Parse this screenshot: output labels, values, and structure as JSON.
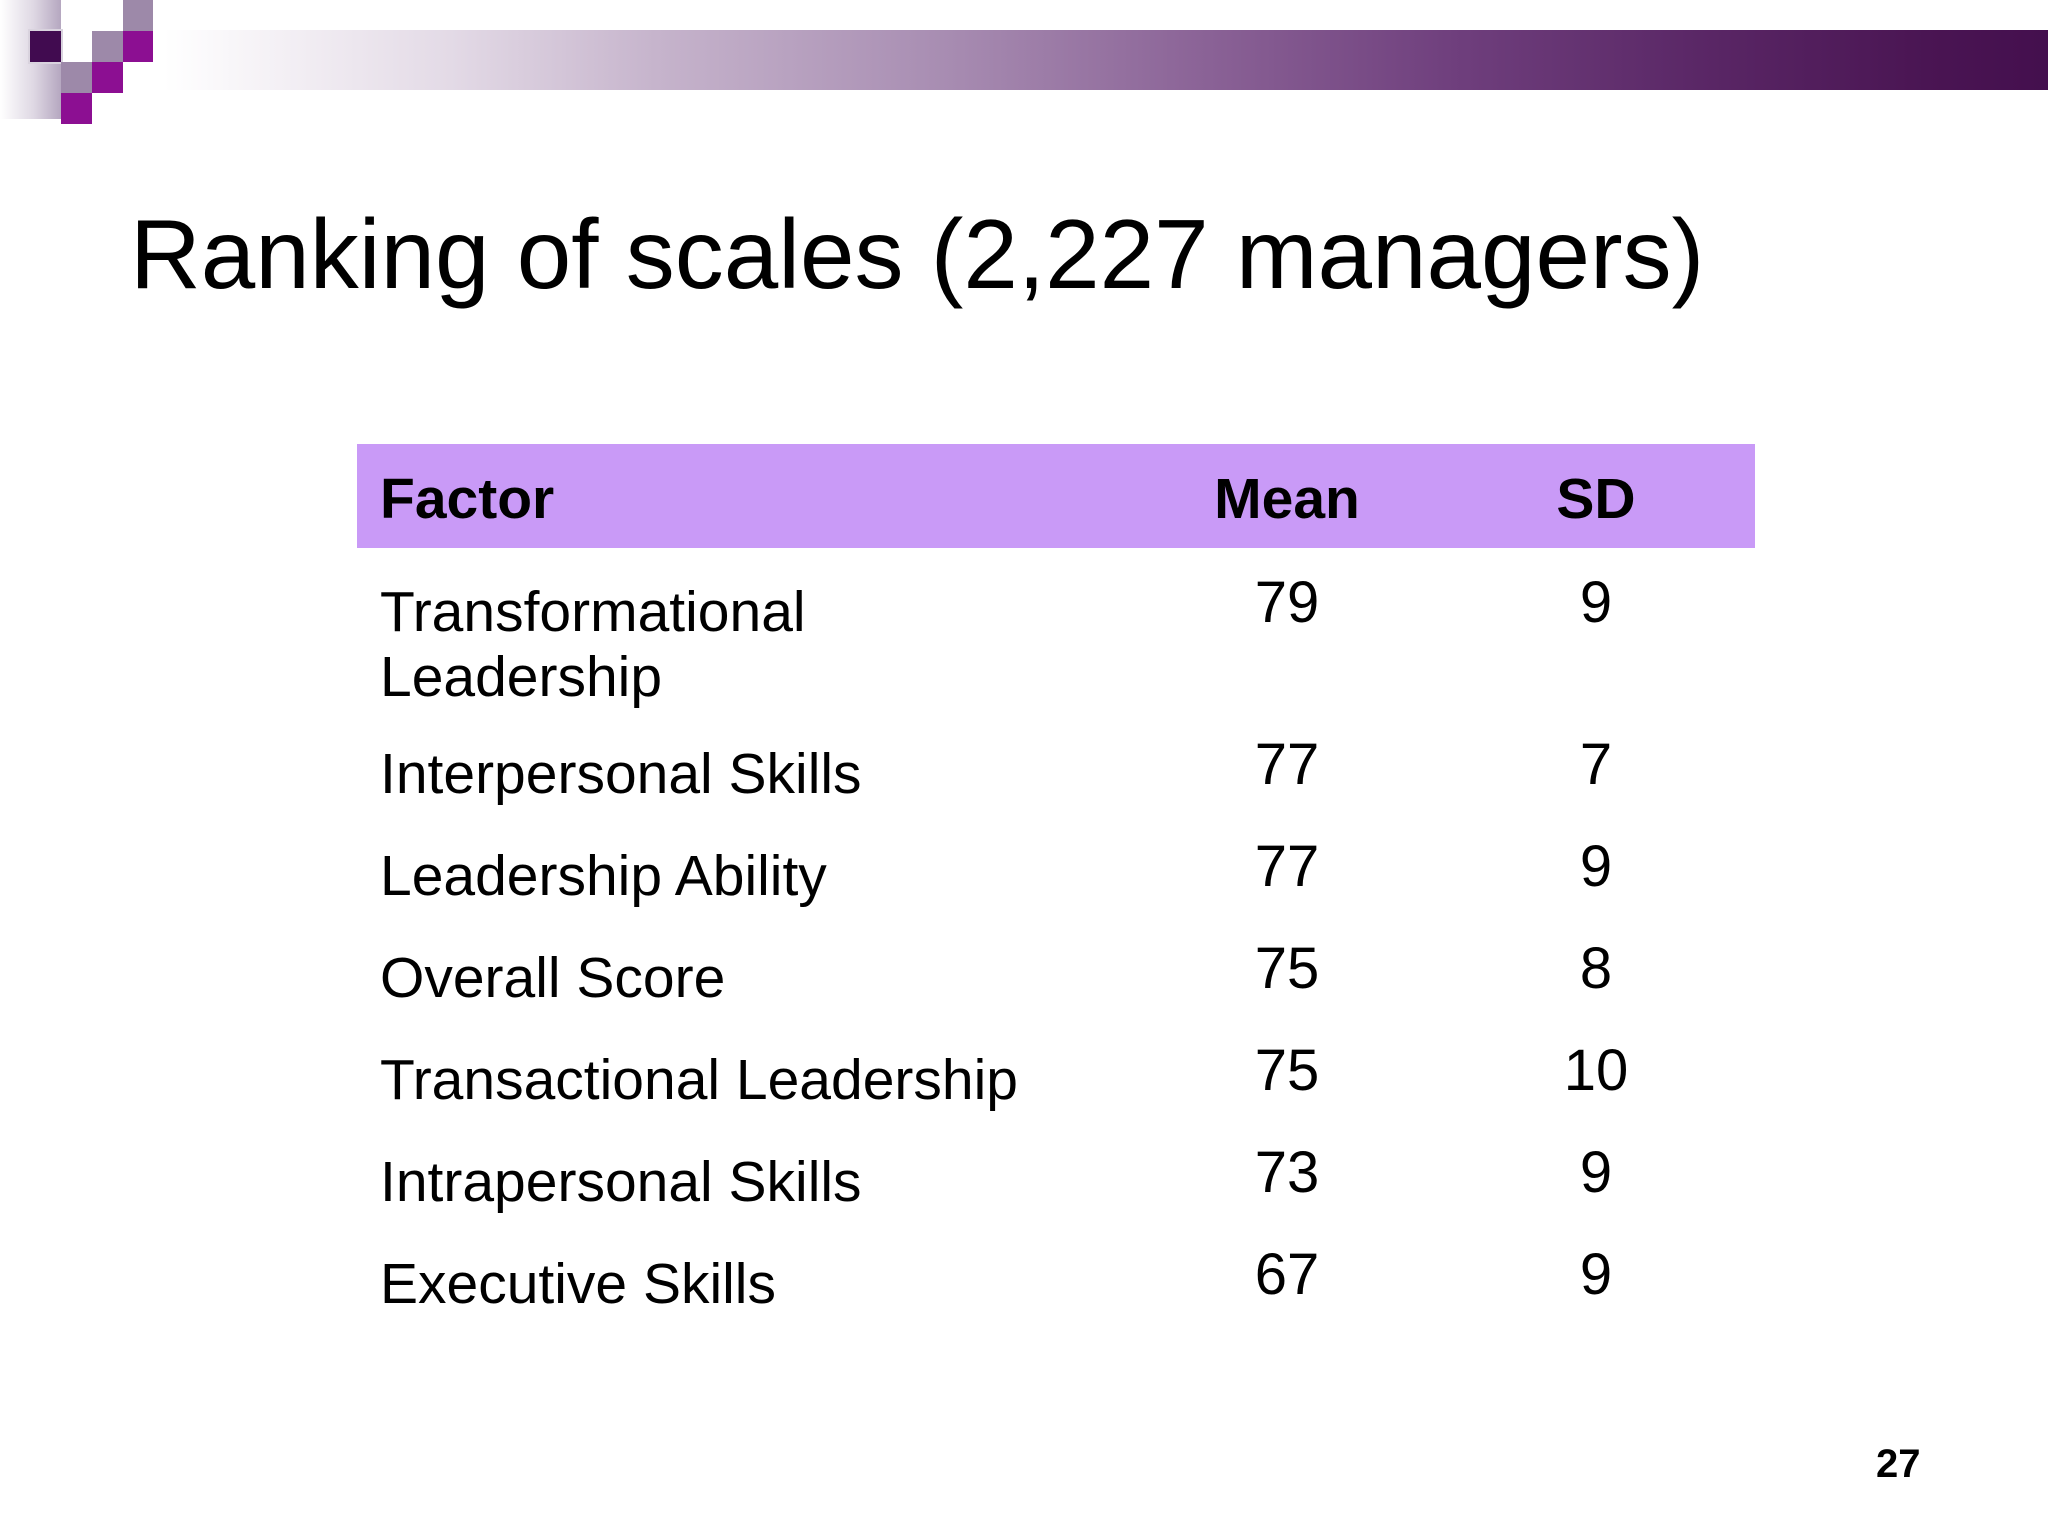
{
  "slide": {
    "title": "Ranking of scales (2,227 managers)",
    "page_number": "27"
  },
  "table": {
    "columns": {
      "factor": "Factor",
      "mean": "Mean",
      "sd": "SD"
    },
    "rows": [
      {
        "factor": "Transformational\nLeadership",
        "mean": "79",
        "sd": "9"
      },
      {
        "factor": "Interpersonal Skills",
        "mean": "77",
        "sd": "7"
      },
      {
        "factor": "Leadership Ability",
        "mean": "77",
        "sd": "9"
      },
      {
        "factor": "Overall Score",
        "mean": "75",
        "sd": "8"
      },
      {
        "factor": "Transactional Leadership",
        "mean": "75",
        "sd": "10"
      },
      {
        "factor": "Intrapersonal Skills",
        "mean": "73",
        "sd": "9"
      },
      {
        "factor": "Executive Skills",
        "mean": "67",
        "sd": "9"
      }
    ]
  },
  "colors": {
    "table_header_bg": "#c99af7",
    "title_text": "#000000",
    "body_text": "#000000",
    "bar_gradient_start": "#ffffff",
    "bar_gradient_end": "#440f4e",
    "square_dark_purple": "#410b50",
    "square_bright_purple": "#8c0f92",
    "square_gray_purple": "#9d89a9"
  }
}
